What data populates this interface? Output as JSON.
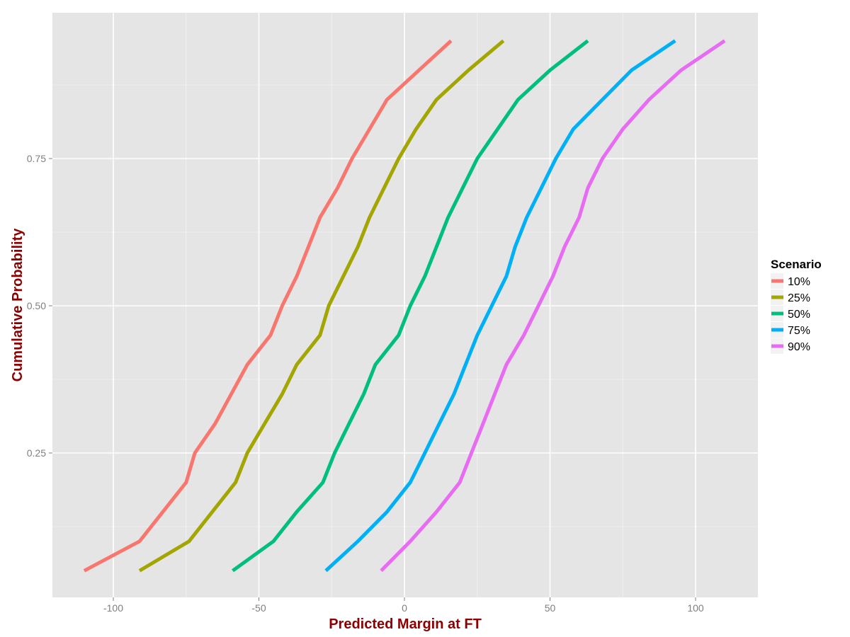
{
  "chart_data": {
    "type": "line",
    "title": "",
    "xlabel": "Predicted Margin at FT",
    "ylabel": "Cumulative Probability",
    "xlim": [
      -122,
      120
    ],
    "ylim": [
      0.0,
      1.0
    ],
    "x_ticks": [
      -100,
      -50,
      0,
      50,
      100
    ],
    "x_tick_labels": [
      "-100",
      "-50",
      "0",
      "50",
      "100"
    ],
    "y_ticks": [
      0.25,
      0.5,
      0.75
    ],
    "y_tick_labels": [
      "0.25",
      "0.50",
      "0.75"
    ],
    "grid": true,
    "legend": {
      "title": "Scenario",
      "position": "right"
    },
    "series": [
      {
        "name": "10%",
        "color": "#F8766D",
        "points": [
          [
            -110,
            0.05
          ],
          [
            -91,
            0.1
          ],
          [
            -75,
            0.2
          ],
          [
            -72,
            0.25
          ],
          [
            -65,
            0.3
          ],
          [
            -54,
            0.4
          ],
          [
            -46,
            0.45
          ],
          [
            -42,
            0.5
          ],
          [
            -37,
            0.55
          ],
          [
            -33,
            0.6
          ],
          [
            -29,
            0.65
          ],
          [
            -23,
            0.7
          ],
          [
            -18,
            0.75
          ],
          [
            -12,
            0.8
          ],
          [
            -6,
            0.85
          ],
          [
            5,
            0.9
          ],
          [
            16,
            0.95
          ]
        ]
      },
      {
        "name": "25%",
        "color": "#A3A500",
        "points": [
          [
            -91,
            0.05
          ],
          [
            -74,
            0.1
          ],
          [
            -66,
            0.15
          ],
          [
            -58,
            0.2
          ],
          [
            -54,
            0.25
          ],
          [
            -48,
            0.3
          ],
          [
            -42,
            0.35
          ],
          [
            -37,
            0.4
          ],
          [
            -29,
            0.45
          ],
          [
            -26,
            0.5
          ],
          [
            -21,
            0.55
          ],
          [
            -16,
            0.6
          ],
          [
            -12,
            0.65
          ],
          [
            -7,
            0.7
          ],
          [
            -2,
            0.75
          ],
          [
            4,
            0.8
          ],
          [
            11,
            0.85
          ],
          [
            22,
            0.9
          ],
          [
            34,
            0.95
          ]
        ]
      },
      {
        "name": "50%",
        "color": "#00BF7D",
        "points": [
          [
            -59,
            0.05
          ],
          [
            -45,
            0.1
          ],
          [
            -37,
            0.15
          ],
          [
            -28,
            0.2
          ],
          [
            -24,
            0.25
          ],
          [
            -19,
            0.3
          ],
          [
            -14,
            0.35
          ],
          [
            -10,
            0.4
          ],
          [
            -2,
            0.45
          ],
          [
            2,
            0.5
          ],
          [
            7,
            0.55
          ],
          [
            11,
            0.6
          ],
          [
            15,
            0.65
          ],
          [
            20,
            0.7
          ],
          [
            25,
            0.75
          ],
          [
            32,
            0.8
          ],
          [
            39,
            0.85
          ],
          [
            50,
            0.9
          ],
          [
            63,
            0.95
          ]
        ]
      },
      {
        "name": "75%",
        "color": "#00B0F6",
        "points": [
          [
            -27,
            0.05
          ],
          [
            -16,
            0.1
          ],
          [
            -6,
            0.15
          ],
          [
            2,
            0.2
          ],
          [
            7,
            0.25
          ],
          [
            12,
            0.3
          ],
          [
            17,
            0.35
          ],
          [
            21,
            0.4
          ],
          [
            25,
            0.45
          ],
          [
            30,
            0.5
          ],
          [
            35,
            0.55
          ],
          [
            38,
            0.6
          ],
          [
            42,
            0.65
          ],
          [
            47,
            0.7
          ],
          [
            52,
            0.75
          ],
          [
            58,
            0.8
          ],
          [
            68,
            0.85
          ],
          [
            78,
            0.9
          ],
          [
            93,
            0.95
          ]
        ]
      },
      {
        "name": "90%",
        "color": "#E76BF3",
        "points": [
          [
            -8,
            0.05
          ],
          [
            2,
            0.1
          ],
          [
            11,
            0.15
          ],
          [
            19,
            0.2
          ],
          [
            23,
            0.25
          ],
          [
            27,
            0.3
          ],
          [
            31,
            0.35
          ],
          [
            35,
            0.4
          ],
          [
            41,
            0.45
          ],
          [
            46,
            0.5
          ],
          [
            51,
            0.55
          ],
          [
            55,
            0.6
          ],
          [
            60,
            0.65
          ],
          [
            63,
            0.7
          ],
          [
            68,
            0.75
          ],
          [
            75,
            0.8
          ],
          [
            84,
            0.85
          ],
          [
            95,
            0.9
          ],
          [
            110,
            0.95
          ]
        ]
      }
    ]
  }
}
